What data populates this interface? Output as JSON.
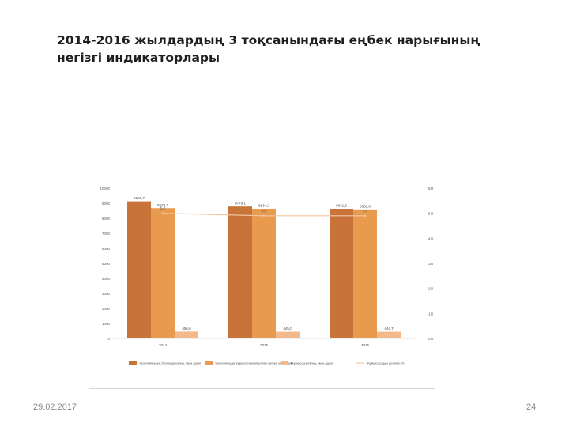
{
  "slide": {
    "title": "2014-2016 жылдардың 3 тоқсанындағы еңбек нарығының негізгі индикаторлары",
    "date": "29.02.2017",
    "page_number": "24"
  },
  "chart_data": {
    "type": "bar",
    "categories": [
      "2014",
      "2015",
      "2016"
    ],
    "series": [
      {
        "name": "Экономикалық белсенді халық, мың адам",
        "values": [
          9126.7,
          8779.1,
          8631.5
        ],
        "labels": [
          "9126,7",
          "8779,1",
          "8631,5"
        ],
        "color": "#c8733a",
        "axis": "left"
      },
      {
        "name": "Экономикада жұмыспен қамтылған халық, мың адам",
        "values": [
          8670.7,
          8634.2,
          8586.8
        ],
        "labels": [
          "8670,7",
          "8634,2",
          "8586,8"
        ],
        "color": "#e89a4e",
        "axis": "left"
      },
      {
        "name": "Жұмыссыз халық, мың адам",
        "values": [
          456.0,
          445.0,
          444.7
        ],
        "labels": [
          "456,0",
          "445,0",
          "444,7"
        ],
        "color": "#f4b98a",
        "axis": "left"
      },
      {
        "name": "Жұмыссыздық деңгейі, %",
        "type": "line",
        "values": [
          5.0,
          4.9,
          4.9
        ],
        "labels": [
          "5,0",
          "4,9",
          "4,9"
        ],
        "color": "#f1c6a4",
        "axis": "right"
      }
    ],
    "y_left": {
      "min": 0,
      "max": 10000,
      "ticks": [
        "0",
        "1000",
        "2000",
        "3000",
        "4000",
        "5000",
        "6000",
        "7000",
        "8000",
        "9000",
        "10000"
      ]
    },
    "y_right": {
      "min": 0,
      "max": 6,
      "ticks": [
        "0,0",
        "1,0",
        "2,0",
        "3,0",
        "4,0",
        "5,0",
        "6,0"
      ]
    },
    "grid": false,
    "legend_position": "bottom"
  }
}
